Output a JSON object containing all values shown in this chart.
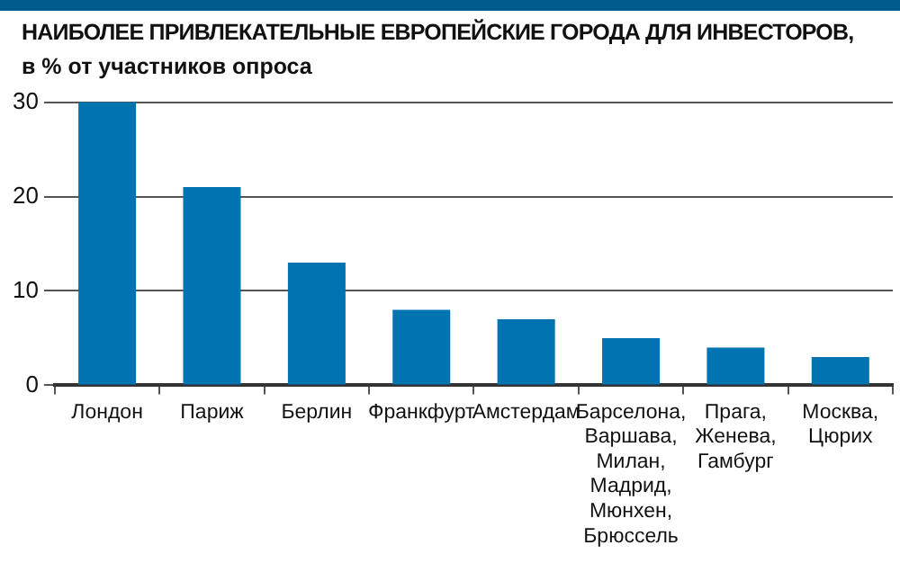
{
  "chart_data": {
    "type": "bar",
    "title": "НАИБОЛЕЕ ПРИВЛЕКАТЕЛЬНЫЕ ЕВРОПЕЙСКИЕ ГОРОДА ДЛЯ ИНВЕСТОРОВ,",
    "subtitle": "в % от участников опроса",
    "categories": [
      "Лондон",
      "Париж",
      "Берлин",
      "Франкфурт",
      "Амстердам",
      "Барселона, Варшава, Милан, Мадрид, Мюнхен, Брюссель",
      "Прага, Женева, Гамбург",
      "Москва, Цюрих"
    ],
    "values": [
      30,
      21,
      13,
      8,
      7,
      5,
      4,
      3
    ],
    "color": "#0073b0",
    "ylim": [
      0,
      30
    ],
    "yticks": [
      0,
      10,
      20,
      30
    ],
    "grid": "y"
  }
}
